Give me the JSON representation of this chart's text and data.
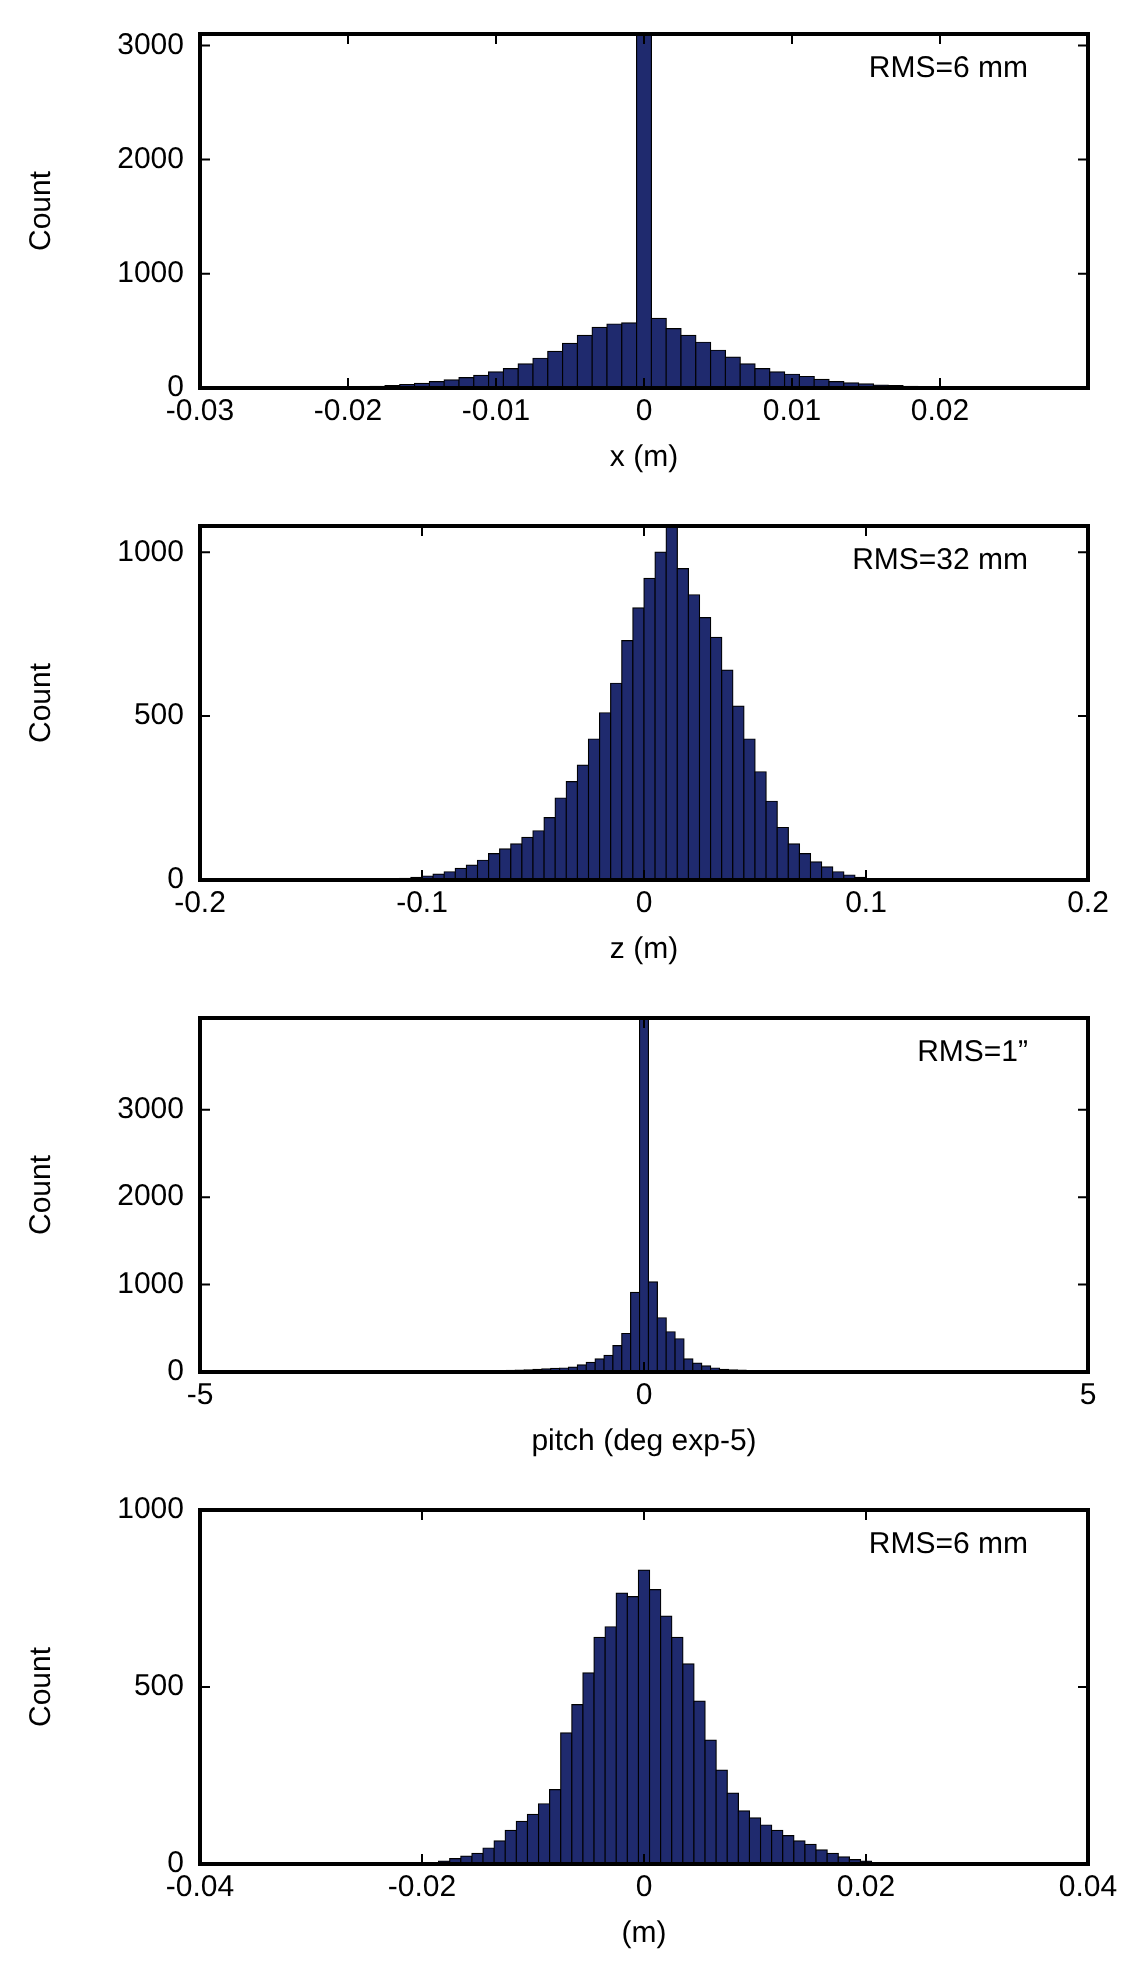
{
  "chart_data": [
    {
      "type": "histogram",
      "xlabel": "x (m)",
      "ylabel": "Count",
      "annotations": [
        "RMS=6 mm"
      ],
      "color": "#1f2a6e",
      "bins": [
        -0.0205,
        -0.0195,
        -0.0185,
        -0.0175,
        -0.0165,
        -0.0155,
        -0.0145,
        -0.0135,
        -0.0125,
        -0.0115,
        -0.0105,
        -0.0095,
        -0.0085,
        -0.0075,
        -0.0065,
        -0.0055,
        -0.0045,
        -0.0035,
        -0.0025,
        -0.0015,
        -0.0005,
        0.0005,
        0.0015,
        0.0025,
        0.0035,
        0.0045,
        0.0055,
        0.0065,
        0.0075,
        0.0085,
        0.0095,
        0.0105,
        0.0115,
        0.0125,
        0.0135,
        0.0145,
        0.0155,
        0.0165,
        0.0175,
        0.0185,
        0.0195,
        0.0205,
        0.0215,
        0.0225,
        0.0235,
        0.0245
      ],
      "values": [
        5,
        10,
        15,
        20,
        30,
        40,
        55,
        70,
        90,
        110,
        140,
        170,
        210,
        260,
        320,
        390,
        460,
        530,
        560,
        570,
        3100,
        610,
        520,
        460,
        400,
        330,
        270,
        210,
        170,
        140,
        120,
        100,
        75,
        55,
        45,
        35,
        25,
        20,
        15,
        10,
        8,
        5,
        4,
        2,
        1
      ],
      "xlim": [
        -0.03,
        0.03
      ],
      "xticks": [
        -0.03,
        -0.02,
        -0.01,
        0,
        0.01,
        0.02
      ],
      "ylim": [
        0,
        3100
      ],
      "yticks": [
        0,
        1000,
        2000,
        3000
      ]
    },
    {
      "type": "histogram",
      "xlabel": "z (m)",
      "ylabel": "Count",
      "annotations": [
        "RMS=32 mm"
      ],
      "color": "#1f2a6e",
      "bins": [
        -0.12,
        -0.115,
        -0.11,
        -0.105,
        -0.1,
        -0.095,
        -0.09,
        -0.085,
        -0.08,
        -0.075,
        -0.07,
        -0.065,
        -0.06,
        -0.055,
        -0.05,
        -0.045,
        -0.04,
        -0.035,
        -0.03,
        -0.025,
        -0.02,
        -0.015,
        -0.01,
        -0.005,
        0,
        0.005,
        0.01,
        0.015,
        0.02,
        0.025,
        0.03,
        0.035,
        0.04,
        0.045,
        0.05,
        0.055,
        0.06,
        0.065,
        0.07,
        0.075,
        0.08,
        0.085,
        0.09,
        0.095,
        0.1,
        0.105
      ],
      "values": [
        2,
        3,
        5,
        8,
        12,
        18,
        25,
        35,
        45,
        60,
        80,
        95,
        110,
        130,
        150,
        190,
        250,
        300,
        350,
        430,
        510,
        600,
        730,
        830,
        920,
        1000,
        1080,
        950,
        870,
        800,
        740,
        640,
        530,
        430,
        330,
        240,
        160,
        110,
        80,
        55,
        40,
        25,
        15,
        8,
        3
      ],
      "xlim": [
        -0.2,
        0.2
      ],
      "xticks": [
        -0.2,
        -0.1,
        0,
        0.1,
        0.2
      ],
      "ylim": [
        0,
        1080
      ],
      "yticks": [
        0,
        500,
        1000
      ]
    },
    {
      "type": "histogram",
      "xlabel": "pitch (deg exp-5)",
      "ylabel": "Count",
      "annotations": [
        "RMS=1”"
      ],
      "color": "#1f2a6e",
      "bins": [
        -2.05,
        -1.95,
        -1.85,
        -1.75,
        -1.65,
        -1.55,
        -1.45,
        -1.35,
        -1.25,
        -1.15,
        -1.05,
        -0.95,
        -0.85,
        -0.75,
        -0.65,
        -0.55,
        -0.45,
        -0.35,
        -0.25,
        -0.15,
        -0.05,
        0.05,
        0.15,
        0.25,
        0.35,
        0.45,
        0.55,
        0.65,
        0.75,
        0.85,
        0.95,
        1.05,
        1.15,
        1.25,
        1.35,
        1.45,
        1.55,
        1.65,
        1.75,
        1.85,
        1.95,
        2.05
      ],
      "values": [
        5,
        8,
        10,
        12,
        15,
        18,
        22,
        25,
        30,
        35,
        40,
        45,
        55,
        80,
        110,
        150,
        190,
        300,
        440,
        910,
        4050,
        1030,
        620,
        460,
        380,
        150,
        100,
        70,
        45,
        30,
        25,
        20,
        15,
        12,
        10,
        8,
        6,
        5,
        4,
        3,
        2
      ],
      "xlim": [
        -5,
        5
      ],
      "xticks": [
        -5,
        0,
        5
      ],
      "ylim": [
        0,
        4050
      ],
      "yticks": [
        0,
        1000,
        2000,
        3000
      ]
    },
    {
      "type": "histogram",
      "xlabel": "(m)",
      "ylabel": "Count",
      "annotations": [
        "RMS=6 mm"
      ],
      "color": "#1f2a6e",
      "bins": [
        -0.0205,
        -0.0195,
        -0.0185,
        -0.0175,
        -0.0165,
        -0.0155,
        -0.0145,
        -0.0135,
        -0.0125,
        -0.0115,
        -0.0105,
        -0.0095,
        -0.0085,
        -0.0075,
        -0.0065,
        -0.0055,
        -0.0045,
        -0.0035,
        -0.0025,
        -0.0015,
        -0.0005,
        0.0005,
        0.0015,
        0.0025,
        0.0035,
        0.0045,
        0.0055,
        0.0065,
        0.0075,
        0.0085,
        0.0095,
        0.0105,
        0.0115,
        0.0125,
        0.0135,
        0.0145,
        0.0155,
        0.0165,
        0.0175,
        0.0185,
        0.0195,
        0.0205
      ],
      "values": [
        2,
        4,
        8,
        15,
        22,
        30,
        45,
        65,
        95,
        120,
        140,
        170,
        210,
        370,
        450,
        540,
        640,
        670,
        765,
        755,
        830,
        775,
        700,
        640,
        565,
        460,
        350,
        265,
        200,
        150,
        130,
        110,
        95,
        80,
        65,
        55,
        40,
        30,
        20,
        12,
        8
      ],
      "xlim": [
        -0.04,
        0.04
      ],
      "xticks": [
        -0.04,
        -0.02,
        0,
        0.02,
        0.04
      ],
      "ylim": [
        0,
        1000
      ],
      "yticks": [
        0,
        500,
        1000
      ]
    }
  ]
}
